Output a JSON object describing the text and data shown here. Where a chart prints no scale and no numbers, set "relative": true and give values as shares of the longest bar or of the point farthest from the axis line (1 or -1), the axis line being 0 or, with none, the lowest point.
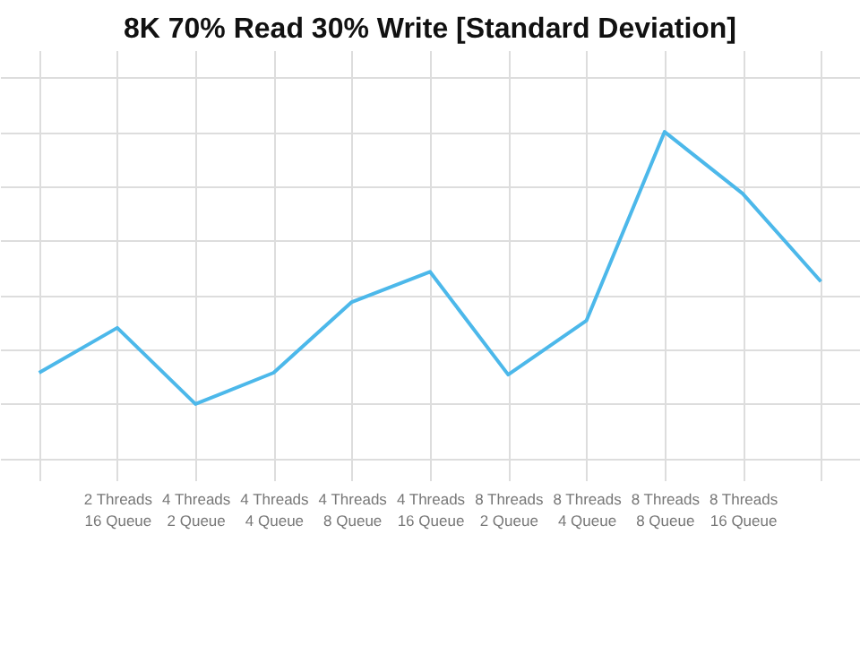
{
  "chart_data": {
    "type": "line",
    "title": "8K 70% Read 30% Write [Standard Deviation]",
    "relative": true,
    "grid": true,
    "marker": "none",
    "line_style": "solid",
    "categories": [
      null,
      "2 Threads 16 Queue",
      "4 Threads 2 Queue",
      "4 Threads 4 Queue",
      "4 Threads 8 Queue",
      "4 Threads 16 Queue",
      "8 Threads 2 Queue",
      "8 Threads 4 Queue",
      "8 Threads 8 Queue",
      "8 Threads 16 Queue",
      null
    ],
    "series": [
      {
        "color": "#4cb8ea",
        "values": [
          0.115,
          0.28,
          0,
          0.115,
          0.375,
          0.486,
          0.108,
          0.306,
          1,
          0.773,
          0.45
        ]
      }
    ]
  }
}
